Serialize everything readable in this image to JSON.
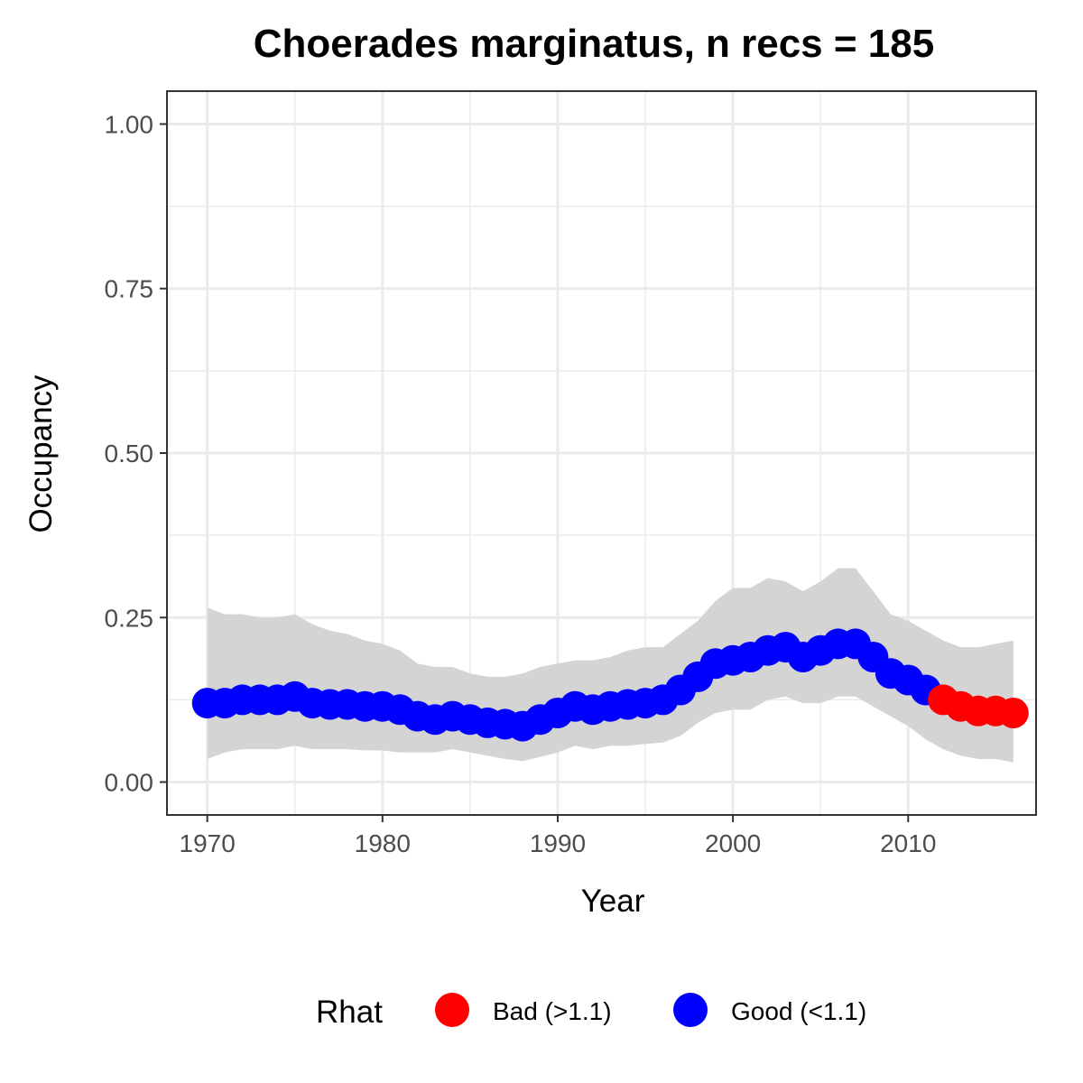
{
  "chart_data": {
    "type": "line",
    "title": "Choerades marginatus, n recs = 185",
    "xlabel": "Year",
    "ylabel": "Occupancy",
    "xlim": [
      1967.7,
      2017.3
    ],
    "ylim": [
      -0.05,
      1.05
    ],
    "x_ticks": [
      1970,
      1980,
      1990,
      2000,
      2010
    ],
    "y_ticks": [
      0,
      0.25,
      0.5,
      0.75,
      1.0
    ],
    "x_tick_labels": [
      "1970",
      "1980",
      "1990",
      "2000",
      "2010"
    ],
    "y_tick_labels": [
      "0.00",
      "0.25",
      "0.50",
      "0.75",
      "1.00"
    ],
    "grid": true,
    "x": [
      1970,
      1971,
      1972,
      1973,
      1974,
      1975,
      1976,
      1977,
      1978,
      1979,
      1980,
      1981,
      1982,
      1983,
      1984,
      1985,
      1986,
      1987,
      1988,
      1989,
      1990,
      1991,
      1992,
      1993,
      1994,
      1995,
      1996,
      1997,
      1998,
      1999,
      2000,
      2001,
      2002,
      2003,
      2004,
      2005,
      2006,
      2007,
      2008,
      2009,
      2010,
      2011,
      2012,
      2013,
      2014,
      2015,
      2016
    ],
    "occupancy": [
      0.12,
      0.12,
      0.125,
      0.125,
      0.125,
      0.13,
      0.12,
      0.118,
      0.118,
      0.115,
      0.115,
      0.11,
      0.1,
      0.095,
      0.1,
      0.095,
      0.09,
      0.088,
      0.085,
      0.095,
      0.105,
      0.115,
      0.11,
      0.115,
      0.118,
      0.12,
      0.125,
      0.14,
      0.16,
      0.18,
      0.185,
      0.19,
      0.2,
      0.205,
      0.19,
      0.2,
      0.21,
      0.21,
      0.19,
      0.165,
      0.155,
      0.14,
      0.125,
      0.115,
      0.108,
      0.108,
      0.105
    ],
    "lower": [
      0.035,
      0.045,
      0.05,
      0.05,
      0.05,
      0.055,
      0.05,
      0.05,
      0.05,
      0.048,
      0.048,
      0.045,
      0.045,
      0.045,
      0.05,
      0.045,
      0.04,
      0.035,
      0.032,
      0.038,
      0.045,
      0.055,
      0.05,
      0.055,
      0.055,
      0.058,
      0.06,
      0.07,
      0.09,
      0.105,
      0.11,
      0.11,
      0.125,
      0.13,
      0.12,
      0.12,
      0.13,
      0.13,
      0.115,
      0.1,
      0.085,
      0.065,
      0.05,
      0.04,
      0.035,
      0.035,
      0.03
    ],
    "upper": [
      0.265,
      0.255,
      0.255,
      0.25,
      0.25,
      0.255,
      0.24,
      0.23,
      0.225,
      0.215,
      0.21,
      0.2,
      0.18,
      0.175,
      0.175,
      0.165,
      0.16,
      0.16,
      0.165,
      0.175,
      0.18,
      0.185,
      0.185,
      0.19,
      0.2,
      0.205,
      0.205,
      0.225,
      0.245,
      0.275,
      0.295,
      0.295,
      0.31,
      0.305,
      0.29,
      0.305,
      0.325,
      0.325,
      0.29,
      0.255,
      0.245,
      0.23,
      0.215,
      0.205,
      0.205,
      0.21,
      0.215
    ],
    "rhat_status": [
      "good",
      "good",
      "good",
      "good",
      "good",
      "good",
      "good",
      "good",
      "good",
      "good",
      "good",
      "good",
      "good",
      "good",
      "good",
      "good",
      "good",
      "good",
      "good",
      "good",
      "good",
      "good",
      "good",
      "good",
      "good",
      "good",
      "good",
      "good",
      "good",
      "good",
      "good",
      "good",
      "good",
      "good",
      "good",
      "good",
      "good",
      "good",
      "good",
      "good",
      "good",
      "good",
      "bad",
      "bad",
      "bad",
      "bad",
      "bad"
    ],
    "legend": {
      "title": "Rhat",
      "position": "bottom",
      "items": [
        {
          "key": "bad",
          "label": "Bad (>1.1)",
          "color": "#ff0000"
        },
        {
          "key": "good",
          "label": "Good (<1.1)",
          "color": "#0000ff"
        }
      ]
    },
    "colors": {
      "ribbon": "#d4d4d4",
      "grid": "#ebebeb",
      "panel_border": "#333333",
      "tick_label": "#4d4d4d"
    }
  }
}
